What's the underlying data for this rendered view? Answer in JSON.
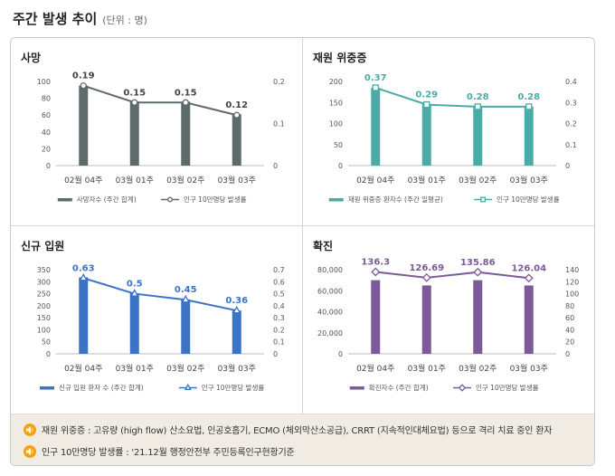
{
  "header": {
    "title": "주간 발생 추이",
    "unit": "(단위 : 명)"
  },
  "chart_data": [
    {
      "type": "bar",
      "title": "사망",
      "categories": [
        "02월 04주",
        "03월 01주",
        "03월 02주",
        "03월 03주"
      ],
      "series": [
        {
          "name": "사망자수 (주간 합계)",
          "values": [
            95,
            76,
            76,
            61
          ],
          "kind": "bar",
          "axis": "left",
          "color": "#5f6b6a"
        },
        {
          "name": "인구 10만명당 발생률",
          "values": [
            0.19,
            0.15,
            0.15,
            0.12
          ],
          "kind": "line",
          "axis": "right",
          "color": "#5f6b6a",
          "marker": "circle"
        }
      ],
      "data_labels": [
        "0.19",
        "0.15",
        "0.15",
        "0.12"
      ],
      "y_left": {
        "min": 0,
        "max": 100,
        "ticks": [
          "0",
          "20",
          "40",
          "60",
          "80",
          "100"
        ]
      },
      "y_right": {
        "min": 0,
        "max": 0.2,
        "ticks": [
          "0",
          "0.1",
          "0.2"
        ]
      },
      "grid": false,
      "legend": "bottom"
    },
    {
      "type": "bar",
      "title": "재원 위중증",
      "categories": [
        "02월 04주",
        "03월 01주",
        "03월 02주",
        "03월 03주"
      ],
      "series": [
        {
          "name": "재원 위중증 환자수 (주간 일평균)",
          "values": [
            185,
            146,
            141,
            140
          ],
          "kind": "bar",
          "axis": "left",
          "color": "#4aaba7"
        },
        {
          "name": "인구 10만명당 발생률",
          "values": [
            0.37,
            0.29,
            0.28,
            0.28
          ],
          "kind": "line",
          "axis": "right",
          "color": "#4aaba7",
          "marker": "square"
        }
      ],
      "data_labels": [
        "0.37",
        "0.29",
        "0.28",
        "0.28"
      ],
      "y_left": {
        "min": 0,
        "max": 200,
        "ticks": [
          "0",
          "50",
          "100",
          "150",
          "200"
        ]
      },
      "y_right": {
        "min": 0,
        "max": 0.4,
        "ticks": [
          "0",
          "0.1",
          "0.2",
          "0.3",
          "0.4"
        ]
      },
      "grid": false,
      "legend": "bottom"
    },
    {
      "type": "bar",
      "title": "신규 입원",
      "categories": [
        "02월 04주",
        "03월 01주",
        "03월 02주",
        "03월 03주"
      ],
      "series": [
        {
          "name": "신규 입원 환자 수 (주간 합계)",
          "values": [
            318,
            252,
            226,
            180
          ],
          "kind": "bar",
          "axis": "left",
          "color": "#3b73c6"
        },
        {
          "name": "인구 10만명당 발생률",
          "values": [
            0.63,
            0.5,
            0.45,
            0.36
          ],
          "kind": "line",
          "axis": "right",
          "color": "#3b73c6",
          "marker": "triangle"
        }
      ],
      "data_labels": [
        "0.63",
        "0.5",
        "0.45",
        "0.36"
      ],
      "y_left": {
        "min": 0,
        "max": 350,
        "ticks": [
          "0",
          "50",
          "100",
          "150",
          "200",
          "250",
          "300",
          "350"
        ]
      },
      "y_right": {
        "min": 0,
        "max": 0.7,
        "ticks": [
          "0",
          "0.1",
          "0.2",
          "0.3",
          "0.4",
          "0.5",
          "0.6",
          "0.7"
        ]
      },
      "grid": false,
      "legend": "bottom"
    },
    {
      "type": "bar",
      "title": "확진",
      "categories": [
        "02월 04주",
        "03월 01주",
        "03월 02주",
        "03월 03주"
      ],
      "series": [
        {
          "name": "확진자수 (주간 합계)",
          "values": [
            70000,
            65000,
            70000,
            65000
          ],
          "kind": "bar",
          "axis": "left",
          "color": "#7a5b98"
        },
        {
          "name": "인구 10만명당 발생률",
          "values": [
            136.3,
            126.69,
            135.86,
            126.04
          ],
          "kind": "line",
          "axis": "right",
          "color": "#7a5b98",
          "marker": "diamond"
        }
      ],
      "data_labels": [
        "136.3",
        "126.69",
        "135.86",
        "126.04"
      ],
      "y_left": {
        "min": 0,
        "max": 80000,
        "ticks": [
          "0",
          "20,000",
          "40,000",
          "60,000",
          "80,000"
        ]
      },
      "y_right": {
        "min": 0,
        "max": 140,
        "ticks": [
          "0",
          "20",
          "40",
          "60",
          "80",
          "100",
          "120",
          "140"
        ]
      },
      "grid": false,
      "legend": "bottom"
    }
  ],
  "notes": [
    "재원 위중증 : 고유량 (high flow) 산소요법, 인공호흡기, ECMO (체외막산소공급), CRRT (지속적인대체요법) 등으로 격리 치료 중인 환자",
    "인구 10만명당 발생률 : '21.12월 행정안전부 주민등록인구현황기준"
  ],
  "icons": {
    "note": "speaker-icon"
  }
}
